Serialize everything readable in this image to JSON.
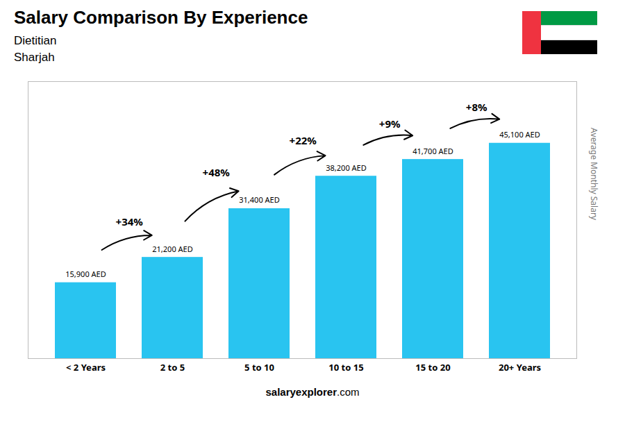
{
  "chart_data": {
    "type": "bar",
    "title": "Salary Comparison By Experience",
    "subtitle": [
      "Dietitian",
      "Sharjah"
    ],
    "ylabel": "Average Monthly Salary",
    "categories": [
      "< 2 Years",
      "2 to 5",
      "5 to 10",
      "10 to 15",
      "15 to 20",
      "20+ Years"
    ],
    "values": [
      15900,
      21200,
      31400,
      38200,
      41700,
      45100
    ],
    "value_labels": [
      "15,900 AED",
      "21,200 AED",
      "31,400 AED",
      "38,200 AED",
      "41,700 AED",
      "45,100 AED"
    ],
    "data_labels": true,
    "color": "#29C4F0",
    "ylim": [
      0,
      58000
    ],
    "tick_labels": "x",
    "annotations": [
      "+34%",
      "+48%",
      "+22%",
      "+9%",
      "+8%"
    ],
    "caption": [
      "salary",
      "explorer",
      ".com"
    ]
  }
}
